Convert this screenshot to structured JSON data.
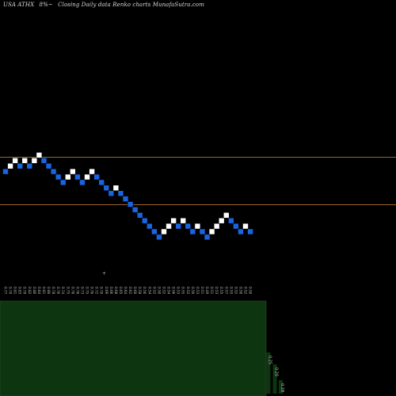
{
  "header": {
    "symbol": "USA ATHX",
    "change": "8%~",
    "description": "Closing Daily data  Renko  charts MunafaSutra.com"
  },
  "colors": {
    "background": "#000000",
    "up_brick": "#ffffff",
    "down_brick": "#1a64e0",
    "brick_outline": "#000000",
    "reference_line": "#a0642a",
    "volume_bar": "#0d3510",
    "volume_outline": "#2e5a2e",
    "label_text": "#bfbfbf"
  },
  "chart_data": {
    "type": "renko",
    "title": "",
    "xlabel": "",
    "ylabel": "",
    "reference_lines": [
      0.95,
      0.7
    ],
    "brick_levels": [
      1,
      2,
      3,
      2,
      3,
      2,
      3,
      4,
      3,
      2,
      1,
      0,
      -1,
      0,
      1,
      0,
      -1,
      0,
      1,
      0,
      -1,
      -2,
      -3,
      -2,
      -3,
      -4,
      -5,
      -6,
      -7,
      -8,
      -9,
      -10,
      -11,
      -10,
      -9,
      -8,
      -9,
      -8,
      -9,
      -10,
      -9,
      -10,
      -11,
      -10,
      -9,
      -8,
      -7,
      -8,
      -9,
      -10,
      -9,
      -10
    ],
    "brick_directions": [
      "down",
      "up",
      "up",
      "down",
      "up",
      "down",
      "up",
      "up",
      "down",
      "down",
      "down",
      "down",
      "down",
      "up",
      "up",
      "down",
      "down",
      "up",
      "up",
      "down",
      "down",
      "down",
      "down",
      "up",
      "down",
      "down",
      "down",
      "down",
      "down",
      "down",
      "down",
      "down",
      "down",
      "up",
      "up",
      "up",
      "down",
      "up",
      "down",
      "down",
      "up",
      "down",
      "down",
      "up",
      "up",
      "up",
      "up",
      "down",
      "down",
      "down",
      "up",
      "down"
    ],
    "x_labels": [
      "0.77",
      "0.79",
      "0.81",
      "0.83",
      "0.79",
      "0.82",
      "0.80",
      "0.84",
      "0.81",
      "0.80",
      "0.78",
      "0.76",
      "0.74",
      "0.75",
      "0.78",
      "0.76",
      "0.73",
      "0.75",
      "0.76",
      "0.72",
      "0.70",
      "0.69",
      "0.66",
      "0.68",
      "0.65",
      "0.64",
      "0.62",
      "0.60",
      "0.58",
      "0.56",
      "0.54",
      "0.52",
      "0.50",
      "0.52",
      "0.54",
      "0.56",
      "0.53",
      "0.55",
      "0.52",
      "0.50",
      "0.53",
      "0.51",
      "0.49",
      "0.51",
      "0.53",
      "0.55",
      "0.57",
      "0.55",
      "0.52",
      "0.50",
      "0.52",
      "0.50"
    ],
    "volume_panel_values": [
      0.25,
      0.2,
      0.28
    ],
    "volume_panel_labels": [
      "0.25",
      "0.20",
      "0.28"
    ],
    "marker_text": "+"
  }
}
